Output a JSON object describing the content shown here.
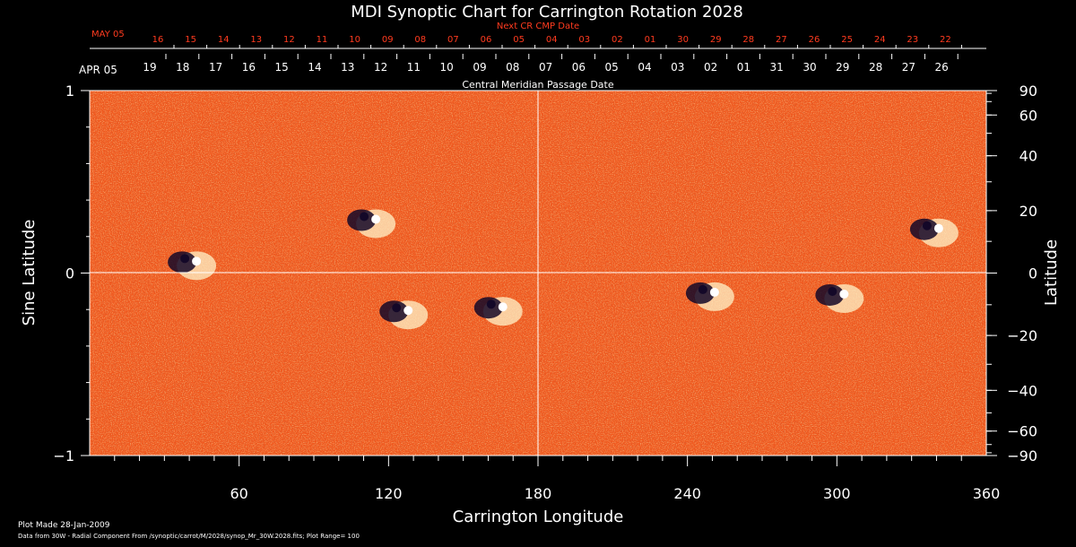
{
  "colors": {
    "background": "#000000",
    "text": "#ffffff",
    "next_cr_text": "#ff3b1f",
    "map_base": "#f0581e",
    "negative": "#140828",
    "positive": "#fff3c8"
  },
  "chart_data": {
    "type": "heatmap",
    "title": "MDI Synoptic Chart for Carrington Rotation 2028",
    "xlabel": "Carrington Longitude",
    "ylabel_left": "Sine Latitude",
    "ylabel_right": "Latitude",
    "xlim": [
      0,
      360
    ],
    "ylim": [
      -1,
      1
    ],
    "x_ticks": [
      "60",
      "120",
      "180",
      "240",
      "300",
      "360"
    ],
    "x_tick_values": [
      60,
      120,
      180,
      240,
      300,
      360
    ],
    "y_left_ticks": [
      "1",
      "0",
      "−1"
    ],
    "y_left_values": [
      1,
      0,
      -1
    ],
    "y_right_ticks": [
      "90",
      "60",
      "40",
      "20",
      "0",
      "−20",
      "−40",
      "−60",
      "−90"
    ],
    "y_right_values": [
      90,
      60,
      40,
      20,
      0,
      -20,
      -40,
      -60,
      -90
    ],
    "grid": "center cross at longitude 180, sine latitude 0",
    "cmp_axis_label": "Central Meridian Passage Date",
    "cmp_first_label": "APR 05",
    "cmp_dates": [
      "19",
      "18",
      "17",
      "16",
      "15",
      "14",
      "13",
      "12",
      "11",
      "10",
      "09",
      "08",
      "07",
      "06",
      "05",
      "04",
      "03",
      "02",
      "01",
      "31",
      "30",
      "29",
      "28",
      "27",
      "26"
    ],
    "next_cr_label": "Next CR CMP Date",
    "next_cr_first_label": "MAY 05",
    "next_cr_dates": [
      "16",
      "15",
      "14",
      "13",
      "12",
      "11",
      "10",
      "09",
      "08",
      "07",
      "06",
      "05",
      "04",
      "03",
      "02",
      "01",
      "30",
      "29",
      "28",
      "27",
      "26",
      "25",
      "24",
      "23",
      "22"
    ],
    "active_regions": [
      {
        "lon": 40,
        "sinlat": 0.05,
        "polarity": "bipole"
      },
      {
        "lon": 112,
        "sinlat": 0.28,
        "polarity": "bipole"
      },
      {
        "lon": 125,
        "sinlat": -0.22,
        "polarity": "bipole"
      },
      {
        "lon": 163,
        "sinlat": -0.2,
        "polarity": "bipole"
      },
      {
        "lon": 248,
        "sinlat": -0.12,
        "polarity": "bipole"
      },
      {
        "lon": 338,
        "sinlat": 0.23,
        "polarity": "bipole"
      },
      {
        "lon": 300,
        "sinlat": -0.13,
        "polarity": "bipole"
      }
    ]
  },
  "footer": {
    "plot_made": "Plot Made 28-Jan-2009",
    "data_from": "Data from 30W - Radial Component From /synoptic/carrot/M/2028/synop_Mr_30W.2028.fits; Plot Range=  100"
  }
}
